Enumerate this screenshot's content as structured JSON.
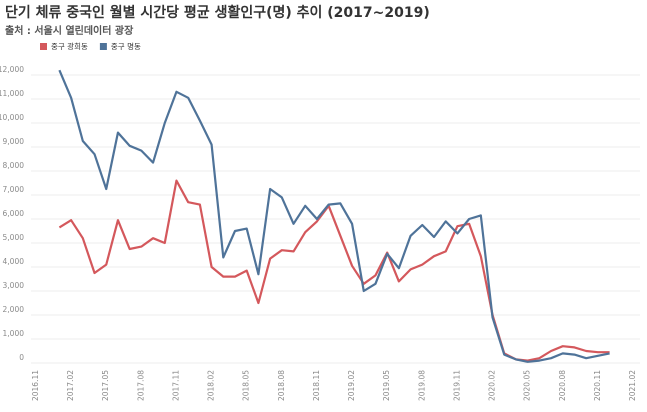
{
  "chart_data": {
    "type": "line",
    "title": "단기 체류 중국인 월별 시간당 평균 생활인구(명) 추이 (2017~2019)",
    "subtitle": "출처 : 서울시 열린데이터 광장",
    "categories": [
      "2016.11",
      null,
      null,
      "2017.02",
      null,
      null,
      "2017.05",
      null,
      null,
      "2017.08",
      null,
      null,
      "2017.11",
      null,
      null,
      "2018.02",
      null,
      null,
      "2018.05",
      null,
      null,
      "2018.08",
      null,
      null,
      "2018.11",
      null,
      null,
      "2019.02",
      null,
      null,
      "2019.05",
      null,
      null,
      "2019.08",
      null,
      null,
      "2019.11",
      null,
      null,
      "2020.02",
      null,
      null,
      "2020.05",
      null,
      null,
      "2020.08",
      null,
      null,
      "2020.11",
      null,
      null,
      "2021.02"
    ],
    "series": [
      {
        "name": "중구 광희동",
        "color": "#d4585c",
        "values": [
          null,
          null,
          5650,
          5950,
          5200,
          3750,
          4100,
          5950,
          4750,
          4850,
          5200,
          5000,
          7600,
          6700,
          6600,
          4000,
          3600,
          3600,
          3850,
          2500,
          4350,
          4700,
          4650,
          5450,
          5900,
          6550,
          5300,
          4050,
          3300,
          3650,
          4600,
          3400,
          3900,
          4100,
          4450,
          4650,
          5700,
          5800,
          4450,
          2000,
          400,
          150,
          100,
          200,
          500,
          700,
          650,
          500,
          450,
          450,
          null,
          null
        ]
      },
      {
        "name": "중구 명동",
        "color": "#4f7399",
        "values": [
          null,
          null,
          12200,
          11050,
          9250,
          8700,
          7250,
          9600,
          9050,
          8850,
          8350,
          10000,
          11300,
          11050,
          10100,
          9100,
          4400,
          5500,
          5600,
          3700,
          7250,
          6900,
          5800,
          6550,
          6000,
          6600,
          6650,
          5800,
          3000,
          3300,
          4550,
          3950,
          5300,
          5750,
          5250,
          5900,
          5400,
          6000,
          6150,
          1900,
          350,
          150,
          50,
          100,
          200,
          400,
          350,
          200,
          300,
          400,
          null,
          null
        ]
      }
    ],
    "ylim": [
      0,
      12500
    ],
    "yticks": [
      0,
      {
        "value": 1000,
        "label": "1,000"
      },
      {
        "value": 2000,
        "label": "2,000"
      },
      {
        "value": 3000,
        "label": "3,000"
      },
      {
        "value": 4000,
        "label": "4,000"
      },
      {
        "value": 5000,
        "label": "5,000"
      },
      {
        "value": 6000,
        "label": "6,000"
      },
      {
        "value": 7000,
        "label": "7,000"
      },
      {
        "value": 8000,
        "label": "8,000"
      },
      {
        "value": 9000,
        "label": "9,000"
      },
      {
        "value": 10000,
        "label": "10,000"
      },
      {
        "value": 11000,
        "label": "11,000"
      },
      {
        "value": 12000,
        "label": "12,000"
      }
    ],
    "grid": true
  }
}
